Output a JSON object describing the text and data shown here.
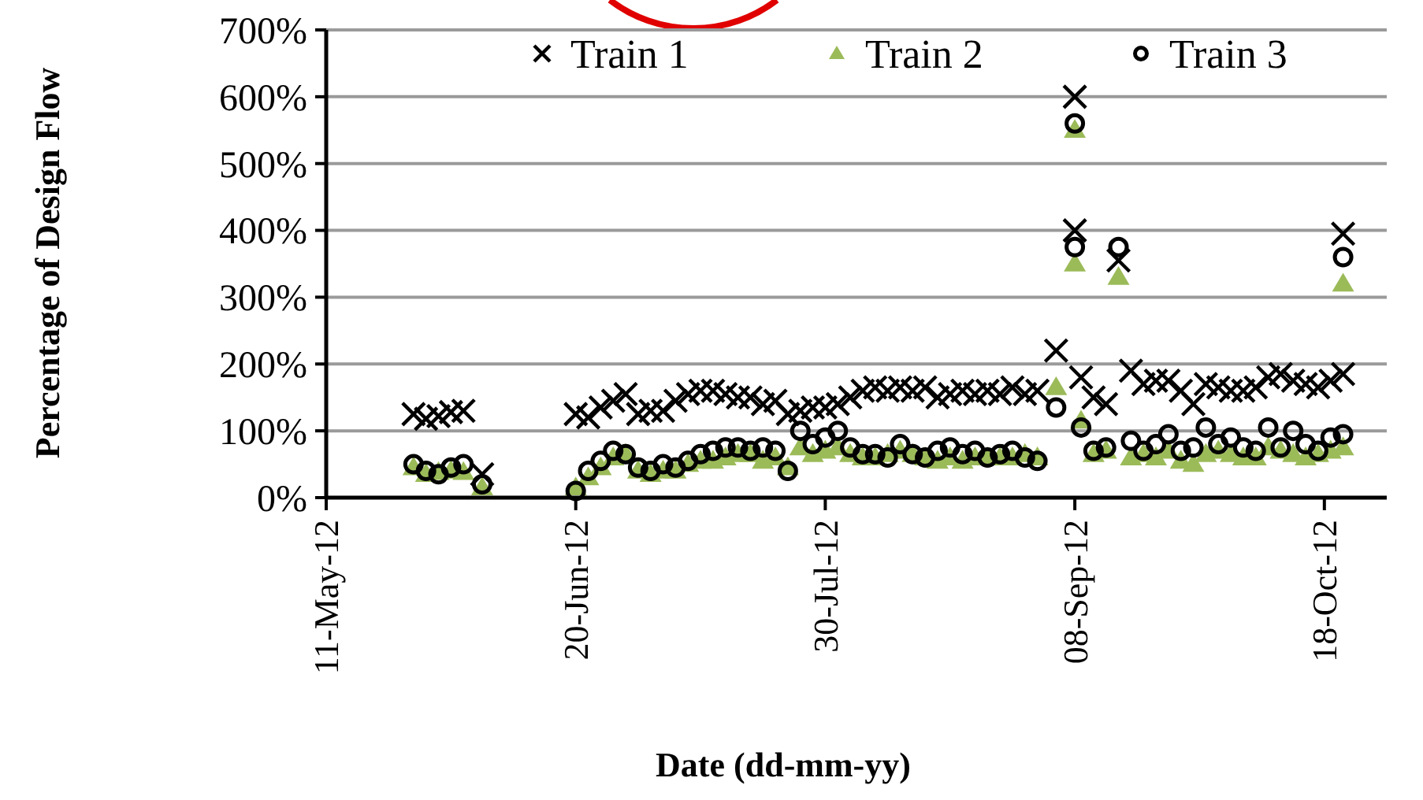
{
  "chart_data": {
    "type": "scatter",
    "xlabel": "Date (dd-mm-yy)",
    "ylabel": "Percentage of Design Flow",
    "xlim": [
      "2012-05-11",
      "2012-10-28"
    ],
    "ylim": [
      0,
      700
    ],
    "xticks": [
      {
        "value": "2012-05-11",
        "label": "11-May-12"
      },
      {
        "value": "2012-06-20",
        "label": "20-Jun-12"
      },
      {
        "value": "2012-07-30",
        "label": "30-Jul-12"
      },
      {
        "value": "2012-09-08",
        "label": "08-Sep-12"
      },
      {
        "value": "2012-10-18",
        "label": "18-Oct-12"
      }
    ],
    "yticks": [
      {
        "value": 0,
        "label": "0%"
      },
      {
        "value": 100,
        "label": "100%"
      },
      {
        "value": 200,
        "label": "200%"
      },
      {
        "value": 300,
        "label": "300%"
      },
      {
        "value": 400,
        "label": "400%"
      },
      {
        "value": 500,
        "label": "500%"
      },
      {
        "value": 600,
        "label": "600%"
      },
      {
        "value": 700,
        "label": "700%"
      }
    ],
    "grid": "y",
    "legend": "top",
    "series": [
      {
        "name": "Train 1",
        "color": "#000000",
        "marker": "cross",
        "x": [
          "2012-05-25",
          "2012-05-27",
          "2012-05-29",
          "2012-05-31",
          "2012-06-02",
          "2012-06-05",
          "2012-06-20",
          "2012-06-22",
          "2012-06-24",
          "2012-06-26",
          "2012-06-28",
          "2012-06-30",
          "2012-07-02",
          "2012-07-04",
          "2012-07-06",
          "2012-07-08",
          "2012-07-10",
          "2012-07-12",
          "2012-07-14",
          "2012-07-16",
          "2012-07-18",
          "2012-07-20",
          "2012-07-22",
          "2012-07-24",
          "2012-07-26",
          "2012-07-28",
          "2012-07-30",
          "2012-08-01",
          "2012-08-03",
          "2012-08-05",
          "2012-08-07",
          "2012-08-09",
          "2012-08-11",
          "2012-08-13",
          "2012-08-15",
          "2012-08-17",
          "2012-08-19",
          "2012-08-21",
          "2012-08-23",
          "2012-08-25",
          "2012-08-27",
          "2012-08-29",
          "2012-08-31",
          "2012-09-02",
          "2012-09-05",
          "2012-09-08",
          "2012-09-08",
          "2012-09-09",
          "2012-09-11",
          "2012-09-13",
          "2012-09-15",
          "2012-09-17",
          "2012-09-19",
          "2012-09-21",
          "2012-09-23",
          "2012-09-25",
          "2012-09-27",
          "2012-09-29",
          "2012-10-01",
          "2012-10-03",
          "2012-10-05",
          "2012-10-07",
          "2012-10-09",
          "2012-10-11",
          "2012-10-13",
          "2012-10-15",
          "2012-10-17",
          "2012-10-19",
          "2012-10-21",
          "2012-10-21"
        ],
        "values": [
          125,
          118,
          122,
          128,
          130,
          35,
          125,
          120,
          135,
          145,
          155,
          125,
          130,
          130,
          145,
          155,
          160,
          160,
          155,
          150,
          150,
          140,
          145,
          125,
          130,
          135,
          135,
          140,
          150,
          160,
          165,
          160,
          165,
          160,
          165,
          150,
          155,
          160,
          155,
          160,
          155,
          165,
          155,
          160,
          220,
          600,
          400,
          180,
          150,
          140,
          355,
          190,
          170,
          175,
          175,
          160,
          140,
          170,
          165,
          160,
          160,
          165,
          180,
          185,
          175,
          170,
          165,
          175,
          395,
          185
        ]
      },
      {
        "name": "Train 2",
        "color": "#9bbb59",
        "marker": "triangle",
        "x": [
          "2012-05-25",
          "2012-05-27",
          "2012-05-29",
          "2012-05-31",
          "2012-06-02",
          "2012-06-05",
          "2012-06-20",
          "2012-06-22",
          "2012-06-24",
          "2012-06-26",
          "2012-06-28",
          "2012-06-30",
          "2012-07-02",
          "2012-07-04",
          "2012-07-06",
          "2012-07-08",
          "2012-07-10",
          "2012-07-12",
          "2012-07-14",
          "2012-07-16",
          "2012-07-18",
          "2012-07-20",
          "2012-07-22",
          "2012-07-24",
          "2012-07-26",
          "2012-07-28",
          "2012-07-30",
          "2012-08-01",
          "2012-08-03",
          "2012-08-05",
          "2012-08-07",
          "2012-08-09",
          "2012-08-11",
          "2012-08-13",
          "2012-08-15",
          "2012-08-17",
          "2012-08-19",
          "2012-08-21",
          "2012-08-23",
          "2012-08-25",
          "2012-08-27",
          "2012-08-29",
          "2012-08-31",
          "2012-09-02",
          "2012-09-05",
          "2012-09-08",
          "2012-09-08",
          "2012-09-09",
          "2012-09-11",
          "2012-09-13",
          "2012-09-15",
          "2012-09-17",
          "2012-09-19",
          "2012-09-21",
          "2012-09-23",
          "2012-09-25",
          "2012-09-27",
          "2012-09-29",
          "2012-10-01",
          "2012-10-03",
          "2012-10-05",
          "2012-10-07",
          "2012-10-09",
          "2012-10-11",
          "2012-10-13",
          "2012-10-15",
          "2012-10-17",
          "2012-10-19",
          "2012-10-21",
          "2012-10-21"
        ],
        "values": [
          45,
          35,
          38,
          40,
          38,
          15,
          15,
          30,
          45,
          60,
          65,
          40,
          35,
          40,
          40,
          50,
          55,
          55,
          60,
          65,
          65,
          55,
          60,
          45,
          75,
          65,
          70,
          75,
          65,
          60,
          60,
          65,
          70,
          65,
          60,
          55,
          60,
          55,
          60,
          60,
          60,
          60,
          65,
          60,
          165,
          550,
          350,
          115,
          65,
          70,
          330,
          60,
          65,
          60,
          70,
          55,
          50,
          65,
          70,
          65,
          60,
          60,
          75,
          70,
          65,
          60,
          65,
          70,
          320,
          75
        ]
      },
      {
        "name": "Train 3",
        "color": "#000000",
        "marker": "circle",
        "x": [
          "2012-05-25",
          "2012-05-27",
          "2012-05-29",
          "2012-05-31",
          "2012-06-02",
          "2012-06-05",
          "2012-06-20",
          "2012-06-22",
          "2012-06-24",
          "2012-06-26",
          "2012-06-28",
          "2012-06-30",
          "2012-07-02",
          "2012-07-04",
          "2012-07-06",
          "2012-07-08",
          "2012-07-10",
          "2012-07-12",
          "2012-07-14",
          "2012-07-16",
          "2012-07-18",
          "2012-07-20",
          "2012-07-22",
          "2012-07-24",
          "2012-07-26",
          "2012-07-28",
          "2012-07-30",
          "2012-08-01",
          "2012-08-03",
          "2012-08-05",
          "2012-08-07",
          "2012-08-09",
          "2012-08-11",
          "2012-08-13",
          "2012-08-15",
          "2012-08-17",
          "2012-08-19",
          "2012-08-21",
          "2012-08-23",
          "2012-08-25",
          "2012-08-27",
          "2012-08-29",
          "2012-08-31",
          "2012-09-02",
          "2012-09-05",
          "2012-09-08",
          "2012-09-08",
          "2012-09-09",
          "2012-09-11",
          "2012-09-13",
          "2012-09-15",
          "2012-09-17",
          "2012-09-19",
          "2012-09-21",
          "2012-09-23",
          "2012-09-25",
          "2012-09-27",
          "2012-09-29",
          "2012-10-01",
          "2012-10-03",
          "2012-10-05",
          "2012-10-07",
          "2012-10-09",
          "2012-10-11",
          "2012-10-13",
          "2012-10-15",
          "2012-10-17",
          "2012-10-19",
          "2012-10-21",
          "2012-10-21"
        ],
        "values": [
          50,
          40,
          35,
          45,
          50,
          20,
          10,
          40,
          55,
          70,
          65,
          45,
          40,
          50,
          45,
          55,
          65,
          70,
          75,
          75,
          70,
          75,
          70,
          40,
          100,
          80,
          90,
          100,
          75,
          65,
          65,
          60,
          80,
          65,
          60,
          70,
          75,
          65,
          70,
          60,
          65,
          70,
          60,
          55,
          135,
          560,
          375,
          105,
          70,
          75,
          375,
          85,
          70,
          80,
          95,
          70,
          75,
          105,
          80,
          90,
          75,
          70,
          105,
          75,
          100,
          80,
          70,
          90,
          360,
          95
        ]
      }
    ]
  }
}
